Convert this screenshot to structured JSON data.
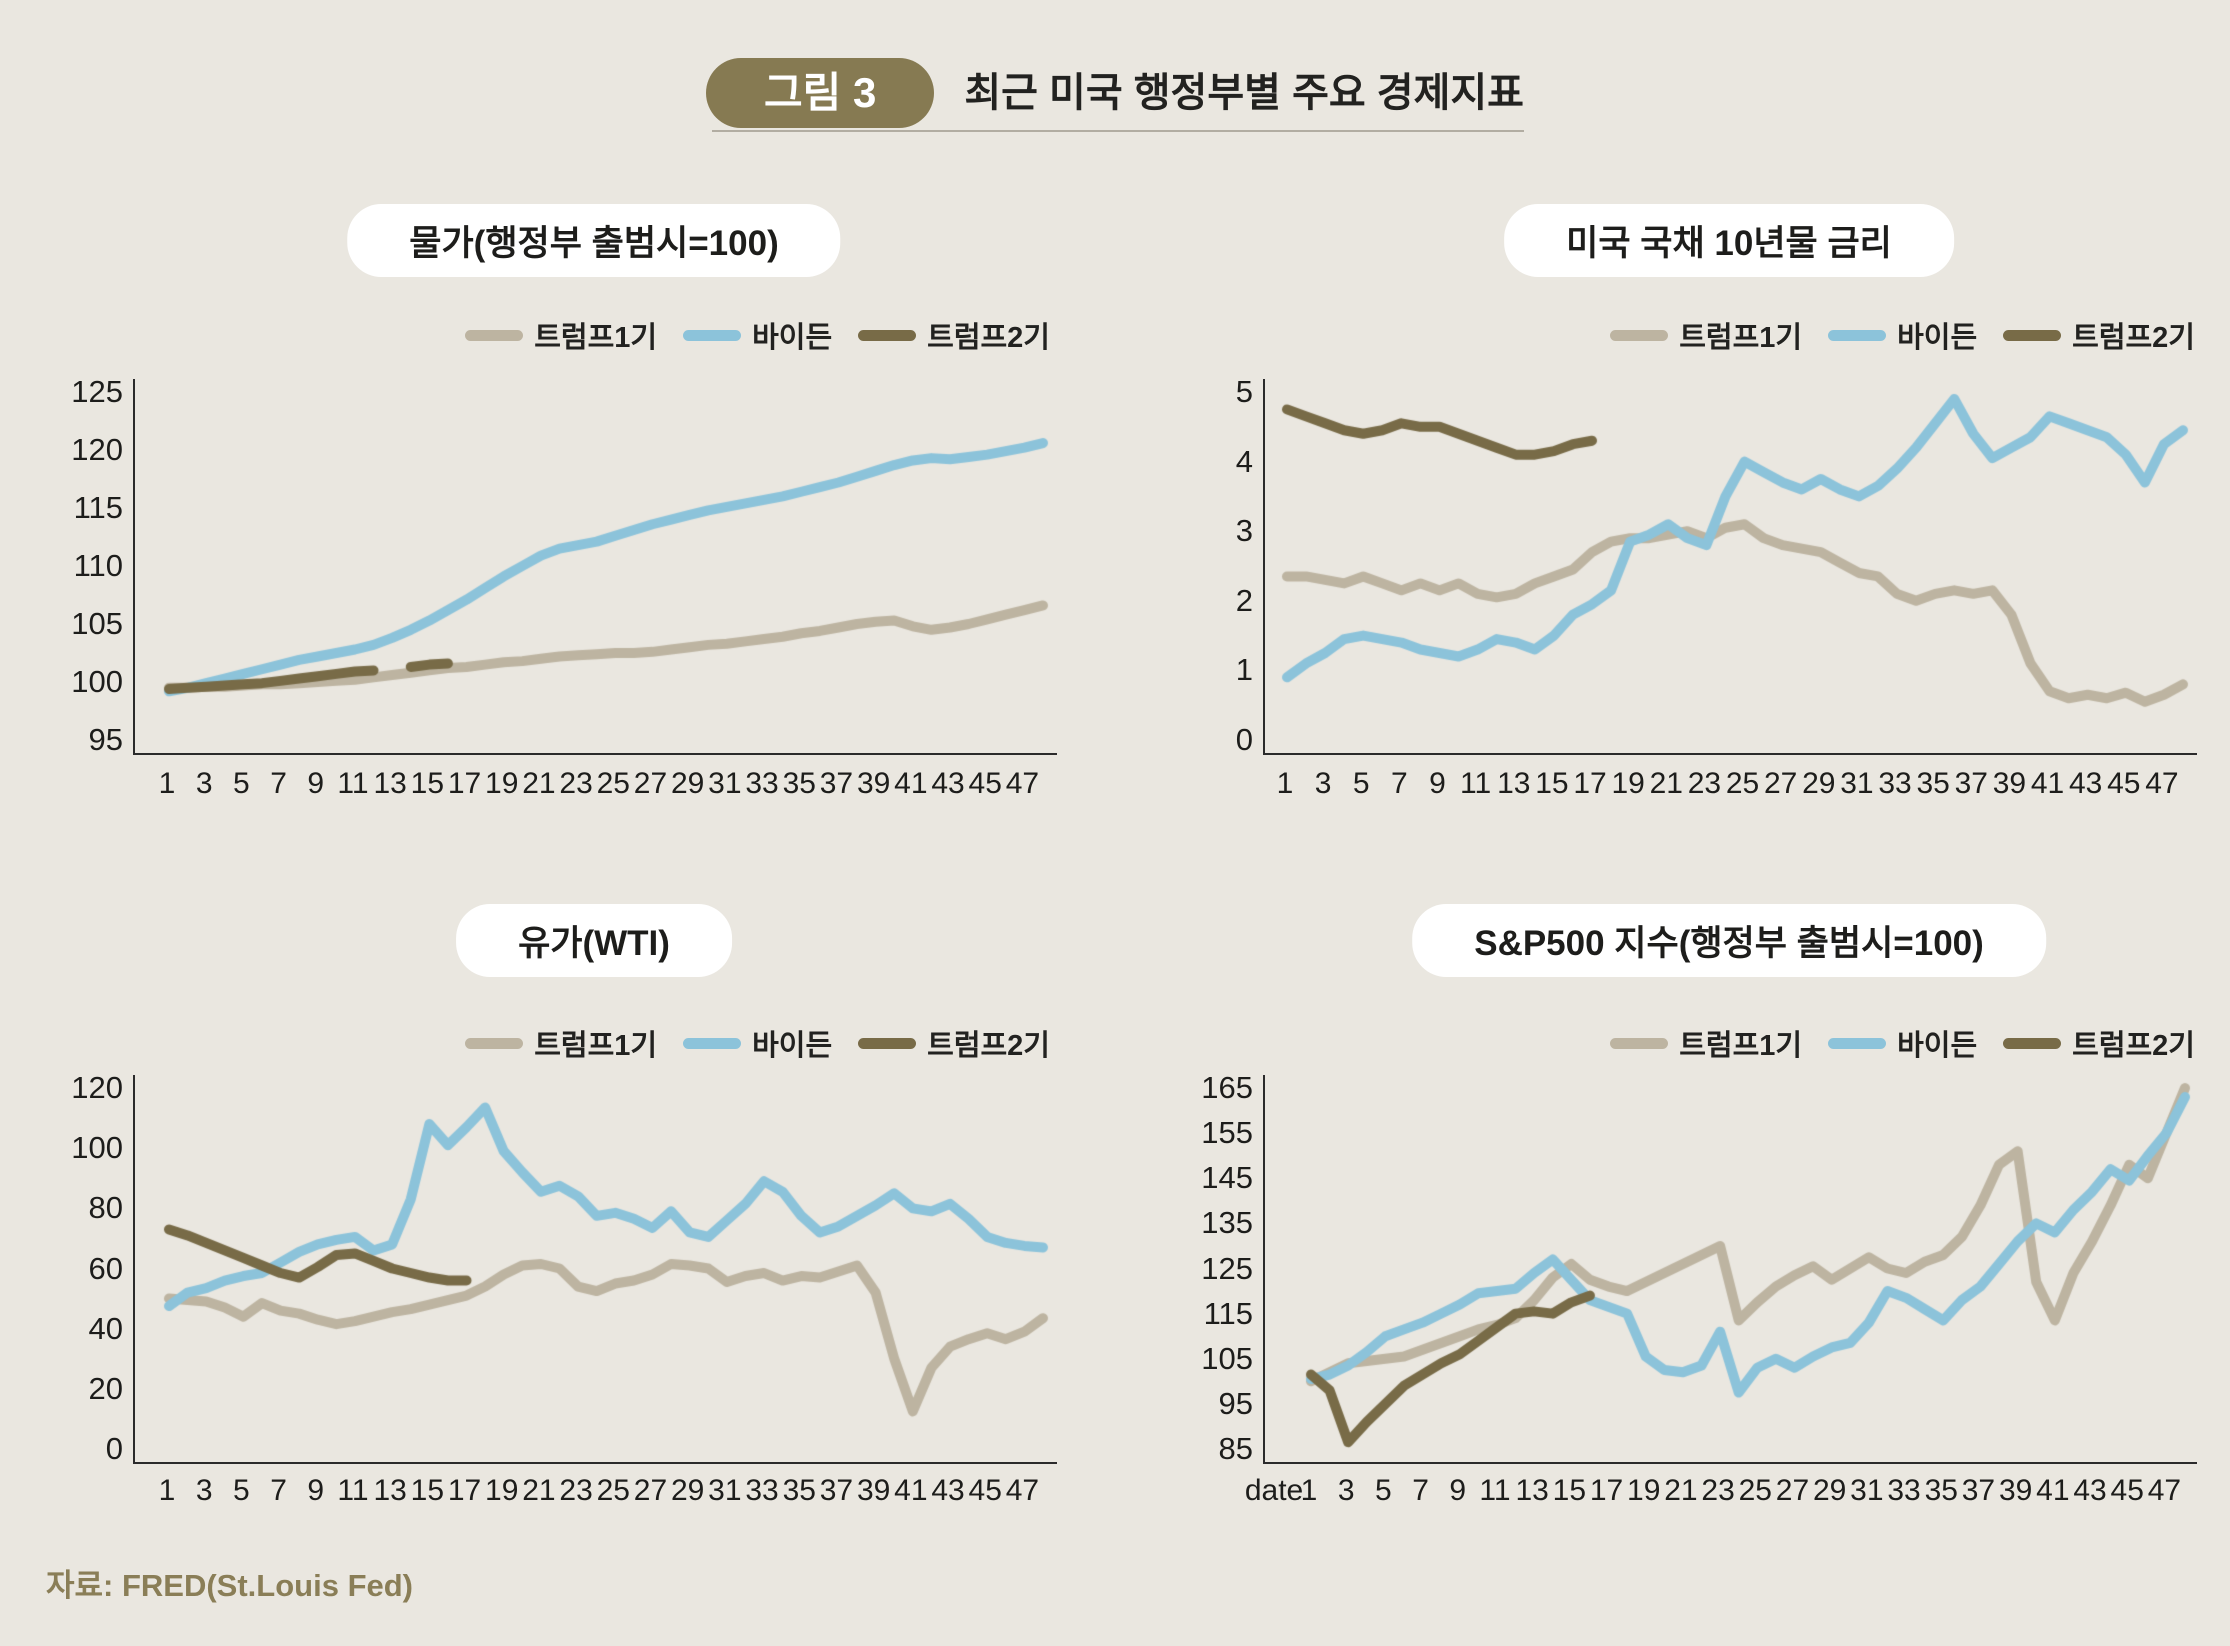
{
  "colors": {
    "trump1": "#bdb4a1",
    "biden": "#8cc3da",
    "trump2": "#786b47",
    "badge_bg": "#867a52",
    "background": "#eae7e0",
    "axis": "#2b2b2b",
    "source_text": "#8a7e57"
  },
  "header": {
    "badge": "그림 3",
    "title": "최근 미국 행정부별 주요 경제지표"
  },
  "legend": {
    "position": "top-right",
    "items": [
      {
        "label": "트럼프1기",
        "color": "trump1"
      },
      {
        "label": "바이든",
        "color": "biden"
      },
      {
        "label": "트럼프2기",
        "color": "trump2"
      }
    ]
  },
  "source": "자료: FRED(St.Louis Fed)",
  "x_axis": {
    "tick_months": [
      1,
      3,
      5,
      7,
      9,
      11,
      13,
      15,
      17,
      19,
      21,
      23,
      25,
      27,
      29,
      31,
      33,
      35,
      37,
      39,
      41,
      43,
      45,
      47
    ]
  },
  "chart_data": [
    {
      "id": "cpi",
      "type": "line",
      "title": "물가(행정부 출범시=100)",
      "xlabel": "",
      "ylabel": "",
      "ylim": [
        95,
        125
      ],
      "yticks": [
        95,
        100,
        105,
        110,
        115,
        120,
        125
      ],
      "x_count": 48,
      "x_prefix": null,
      "grid": false,
      "series": [
        {
          "name": "트럼프1기",
          "color": "trump1",
          "values": [
            99.5,
            99.5,
            99.6,
            99.6,
            99.7,
            99.8,
            99.8,
            99.9,
            100.0,
            100.1,
            100.2,
            100.4,
            100.6,
            100.8,
            101.0,
            101.2,
            101.3,
            101.5,
            101.7,
            101.8,
            102.0,
            102.2,
            102.3,
            102.4,
            102.5,
            102.5,
            102.6,
            102.8,
            103.0,
            103.2,
            103.3,
            103.5,
            103.7,
            103.9,
            104.2,
            104.4,
            104.7,
            105.0,
            105.2,
            105.3,
            104.8,
            104.5,
            104.7,
            105.0,
            105.4,
            105.8,
            106.2,
            106.6
          ]
        },
        {
          "name": "바이든",
          "color": "biden",
          "values": [
            99.2,
            99.5,
            99.9,
            100.3,
            100.7,
            101.1,
            101.5,
            101.9,
            102.2,
            102.5,
            102.8,
            103.2,
            103.8,
            104.5,
            105.3,
            106.2,
            107.1,
            108.1,
            109.1,
            110.0,
            110.9,
            111.5,
            111.8,
            112.1,
            112.6,
            113.1,
            113.6,
            114.0,
            114.4,
            114.8,
            115.1,
            115.4,
            115.7,
            116.0,
            116.4,
            116.8,
            117.2,
            117.7,
            118.2,
            118.7,
            119.1,
            119.3,
            119.2,
            119.4,
            119.6,
            119.9,
            120.2,
            120.6
          ]
        },
        {
          "name": "트럼프2기",
          "color": "trump2",
          "values": [
            99.4,
            99.5,
            99.6,
            99.7,
            99.8,
            99.9,
            100.1,
            100.3,
            100.5,
            100.7,
            100.9,
            101.0,
            null,
            101.3,
            101.5,
            101.6
          ]
        }
      ]
    },
    {
      "id": "treasury10y",
      "type": "line",
      "title": "미국 국채 10년물 금리",
      "xlabel": "",
      "ylabel": "",
      "ylim": [
        0,
        5
      ],
      "yticks": [
        0,
        1,
        2,
        3,
        4,
        5
      ],
      "x_count": 48,
      "x_prefix": null,
      "grid": false,
      "series": [
        {
          "name": "트럼프1기",
          "color": "trump1",
          "values": [
            2.35,
            2.35,
            2.3,
            2.25,
            2.35,
            2.25,
            2.15,
            2.25,
            2.15,
            2.25,
            2.1,
            2.05,
            2.1,
            2.25,
            2.35,
            2.45,
            2.7,
            2.85,
            2.9,
            2.9,
            2.95,
            3.0,
            2.9,
            3.05,
            3.1,
            2.9,
            2.8,
            2.75,
            2.7,
            2.55,
            2.4,
            2.35,
            2.1,
            2.0,
            2.1,
            2.15,
            2.1,
            2.15,
            1.8,
            1.1,
            0.7,
            0.6,
            0.65,
            0.6,
            0.68,
            0.55,
            0.65,
            0.8
          ]
        },
        {
          "name": "바이든",
          "color": "biden",
          "values": [
            0.9,
            1.1,
            1.25,
            1.45,
            1.5,
            1.45,
            1.4,
            1.3,
            1.25,
            1.2,
            1.3,
            1.45,
            1.4,
            1.3,
            1.5,
            1.8,
            1.95,
            2.15,
            2.85,
            2.95,
            3.1,
            2.9,
            2.8,
            3.5,
            4.0,
            3.85,
            3.7,
            3.6,
            3.75,
            3.6,
            3.5,
            3.65,
            3.9,
            4.2,
            4.55,
            4.9,
            4.4,
            4.05,
            4.2,
            4.35,
            4.65,
            4.55,
            4.45,
            4.35,
            4.1,
            3.7,
            4.25,
            4.45
          ]
        },
        {
          "name": "트럼프2기",
          "color": "trump2",
          "values": [
            4.75,
            4.65,
            4.55,
            4.45,
            4.4,
            4.45,
            4.55,
            4.5,
            4.5,
            4.4,
            4.3,
            4.2,
            4.1,
            4.1,
            4.15,
            4.25,
            4.3
          ]
        }
      ]
    },
    {
      "id": "wti",
      "type": "line",
      "title": "유가(WTI)",
      "xlabel": "",
      "ylabel": "",
      "ylim": [
        0,
        120
      ],
      "yticks": [
        0,
        20,
        40,
        60,
        80,
        100,
        120
      ],
      "x_count": 48,
      "x_prefix": null,
      "grid": false,
      "series": [
        {
          "name": "트럼프1기",
          "color": "trump1",
          "values": [
            50,
            49.5,
            49,
            47,
            44,
            48.5,
            46,
            45,
            43,
            41.5,
            42.5,
            44,
            45.5,
            46.5,
            48,
            49.5,
            51,
            54,
            58,
            61,
            61.5,
            60,
            54,
            52.5,
            55,
            56,
            58,
            61.5,
            61,
            60,
            55.5,
            57.5,
            58.5,
            56,
            57.5,
            57,
            59,
            61,
            52,
            30,
            12.5,
            27,
            34,
            36.5,
            38.5,
            36.5,
            39,
            43.5
          ]
        },
        {
          "name": "바이든",
          "color": "biden",
          "values": [
            47.5,
            52,
            53.5,
            56,
            57.5,
            58.5,
            62,
            65.5,
            68,
            69.5,
            70.5,
            66,
            68,
            83,
            108,
            101,
            107,
            113.5,
            99,
            92,
            85.5,
            87.5,
            84,
            77.5,
            78.5,
            76.5,
            73.5,
            79,
            72,
            70.5,
            76,
            81.5,
            89,
            85.5,
            77.5,
            72,
            74,
            77.5,
            81,
            85,
            80,
            79,
            81.5,
            76.5,
            70.5,
            68.5,
            67.5,
            67
          ]
        },
        {
          "name": "트럼프2기",
          "color": "trump2",
          "values": [
            73,
            71,
            68.5,
            66,
            63.5,
            61,
            58.5,
            57,
            60.5,
            64.5,
            65,
            62.5,
            60,
            58.5,
            57,
            56,
            56
          ]
        }
      ]
    },
    {
      "id": "sp500",
      "type": "line",
      "title": "S&P500 지수(행정부 출범시=100)",
      "xlabel": "",
      "ylabel": "",
      "ylim": [
        85,
        165
      ],
      "yticks": [
        85,
        95,
        105,
        115,
        125,
        135,
        145,
        155,
        165
      ],
      "x_count": 48,
      "x_prefix": "date",
      "grid": false,
      "series": [
        {
          "name": "트럼프1기",
          "color": "trump1",
          "values": [
            100,
            102,
            104,
            104.5,
            105,
            105.5,
            107,
            108.5,
            110,
            111.5,
            112.5,
            114,
            118,
            123,
            126,
            122.5,
            121,
            120,
            122,
            124,
            126,
            128,
            130,
            113.5,
            117.5,
            121,
            123.5,
            125.5,
            122.5,
            125,
            127.5,
            125,
            124,
            126.5,
            128,
            132,
            139,
            148,
            151,
            122,
            113.5,
            124,
            131,
            139,
            148,
            145,
            155,
            165
          ]
        },
        {
          "name": "바이든",
          "color": "biden",
          "values": [
            100.5,
            101.5,
            103.5,
            106.5,
            110,
            111.5,
            113,
            115,
            117,
            119.5,
            120,
            120.5,
            124,
            127,
            122.5,
            118,
            116.5,
            115,
            105.5,
            102.5,
            102,
            103.5,
            111,
            97.5,
            103,
            105,
            103,
            105.5,
            107.5,
            108.5,
            113,
            120,
            118.5,
            116,
            113.5,
            118,
            121,
            126,
            131,
            135,
            133,
            138,
            142,
            147,
            144.5,
            150,
            155,
            163
          ]
        },
        {
          "name": "트럼프2기",
          "color": "trump2",
          "values": [
            101.5,
            98,
            86.5,
            91,
            95,
            99,
            101.5,
            104,
            106,
            109,
            112,
            115,
            115.5,
            115,
            117.5,
            119
          ]
        }
      ]
    }
  ]
}
